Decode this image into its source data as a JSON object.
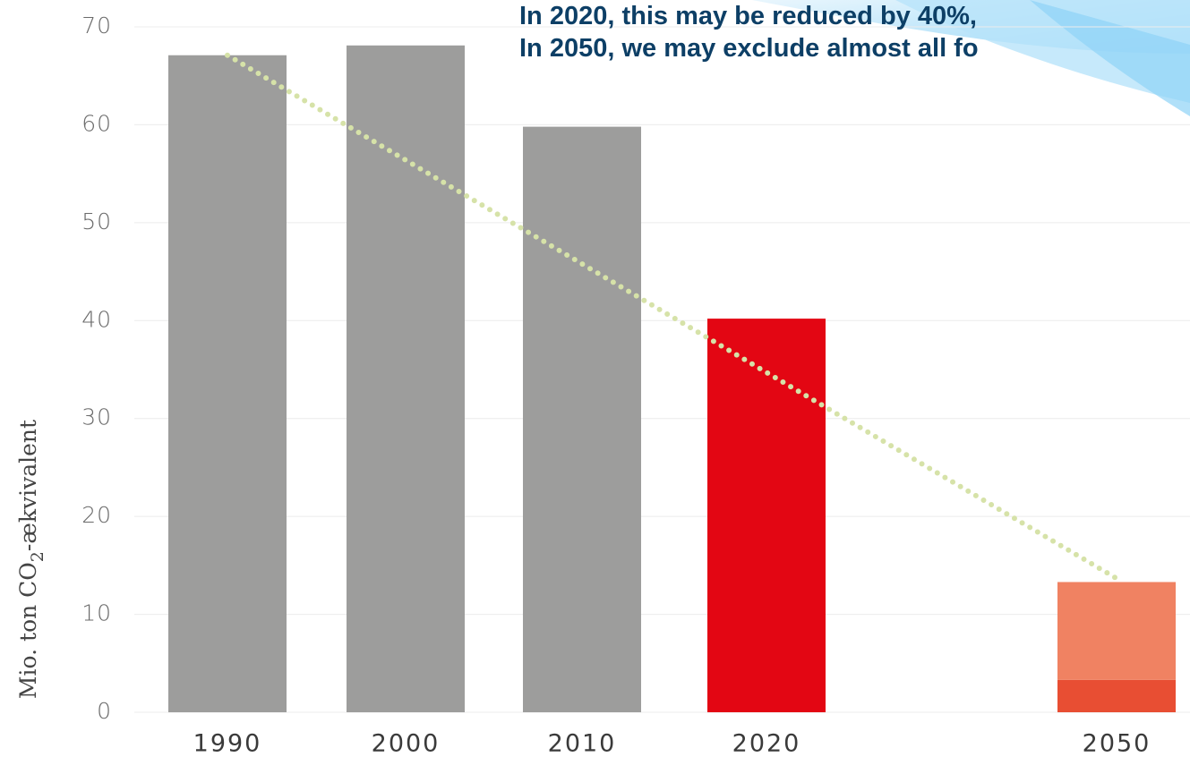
{
  "chart_data": {
    "type": "bar",
    "categories": [
      "1990",
      "2000",
      "2010",
      "2020",
      "2050"
    ],
    "series": [
      {
        "values": [
          67.1,
          68.1,
          59.8,
          40.2,
          3.3
        ],
        "colors": [
          "#9d9d9c",
          "#9d9d9c",
          "#9d9d9c",
          "#e30613",
          "#e84e33"
        ]
      },
      {
        "values": [
          null,
          null,
          null,
          null,
          10.0
        ],
        "colors": [
          null,
          null,
          null,
          null,
          "#f08262"
        ]
      }
    ],
    "trend_line": {
      "values": [
        67.1,
        13.4
      ],
      "color": "#d6e2a8"
    },
    "ylim": [
      0,
      70
    ],
    "yticks": [
      0,
      10,
      20,
      30,
      40,
      50,
      60,
      70
    ],
    "grid": true,
    "y_label": [
      "Mio. ton CO",
      "2",
      "-ækvivalent"
    ],
    "annotations": [
      "In 2020, this may be reduced by 40%,",
      "In 2050, we may exclude almost all fo"
    ]
  }
}
